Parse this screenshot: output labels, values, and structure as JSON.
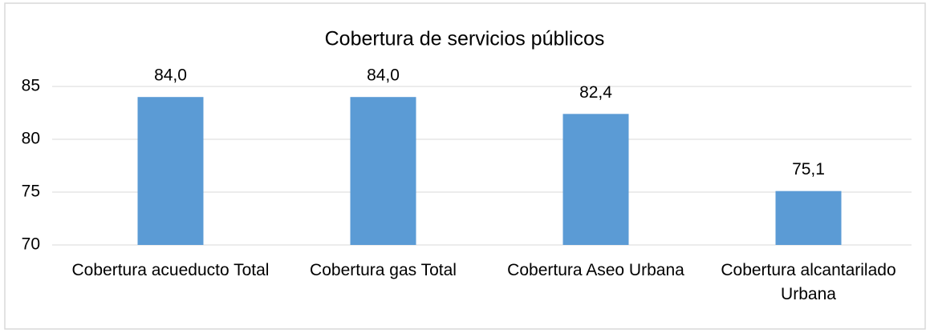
{
  "chart_data": {
    "type": "bar",
    "title": "Cobertura de servicios públicos",
    "categories": [
      "Cobertura acueducto Total",
      "Cobertura gas Total",
      "Cobertura Aseo Urbana",
      "Cobertura alcantarilado Urbana"
    ],
    "values": [
      84.0,
      84.0,
      82.4,
      75.1
    ],
    "value_labels": [
      "84,0",
      "84,0",
      "82,4",
      "75,1"
    ],
    "color": "#5b9bd5",
    "ylim": [
      70,
      85
    ],
    "yticks": [
      70,
      75,
      80,
      85
    ],
    "grid": true
  }
}
